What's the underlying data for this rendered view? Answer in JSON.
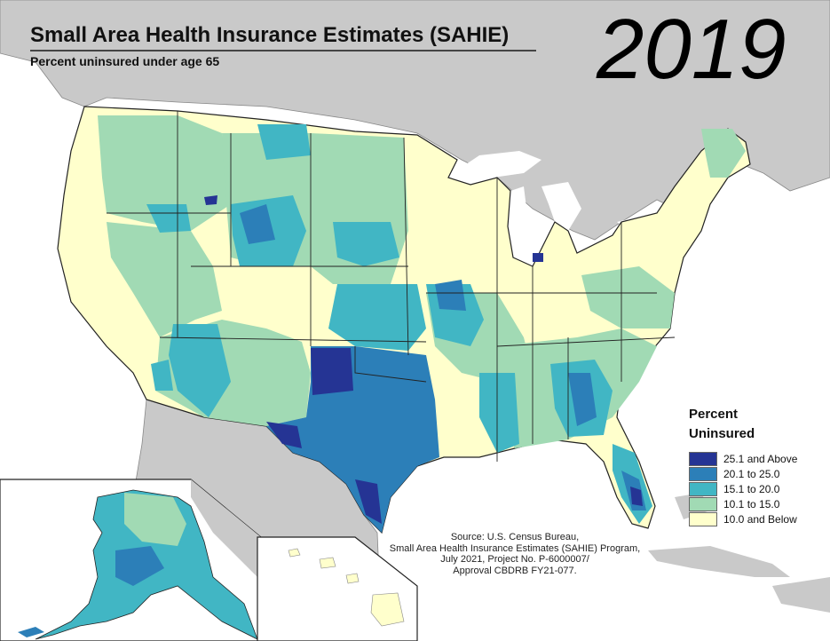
{
  "title": "Small Area Health Insurance Estimates (SAHIE)",
  "subtitle": "Percent uninsured under age 65",
  "year": "2019",
  "legend": {
    "title_line1": "Percent",
    "title_line2": "Uninsured",
    "items": [
      {
        "label": "25.1 and Above",
        "color": "#253494"
      },
      {
        "label": "20.1 to 25.0",
        "color": "#2c7fb8"
      },
      {
        "label": "15.1 to 20.0",
        "color": "#41b6c4"
      },
      {
        "label": "10.1 to 15.0",
        "color": "#a1dab4"
      },
      {
        "label": "10.0 and Below",
        "color": "#ffffcc"
      }
    ]
  },
  "source": {
    "line1": "Source: U.S. Census Bureau,",
    "line2": "Small Area Health Insurance Estimates (SAHIE) Program,",
    "line3": "July 2021, Project No. P-6000007/",
    "line4": "Approval CBDRB FY21-077."
  },
  "colors": {
    "background_land": "#c9c9c9",
    "water": "#ffffff",
    "boundary": "#222222"
  }
}
